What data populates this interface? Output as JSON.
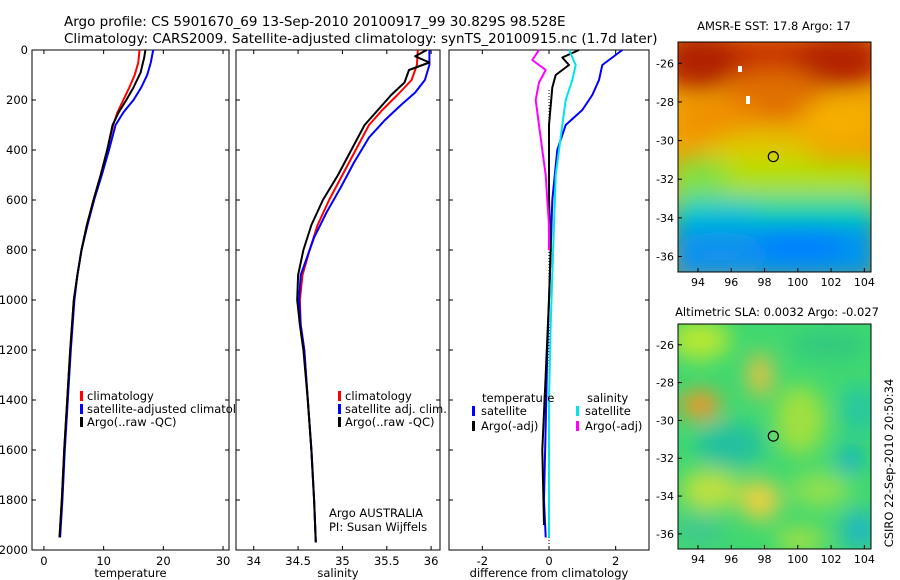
{
  "header": {
    "line1": "Argo profile: CS 5901670_69 13-Sep-2010 20100917_99 30.829S 98.528E",
    "line2": "Climatology: CARS2009. Satellite-adjusted climatology: synTS_20100915.nc (1.7d later)"
  },
  "side_label": "CSIRO 22-Sep-2010 20:50:34",
  "colors": {
    "climatology": "#ff0000",
    "satellite": "#0000ff",
    "argo": "#000000",
    "salinity_satellite": "#00e5e5",
    "salinity_argo": "#ff00ff"
  },
  "chart_data": [
    {
      "type": "line",
      "xlabel": "temperature",
      "ylim": [
        2000,
        0
      ],
      "xlim": [
        -2,
        31
      ],
      "xticks": [
        "0",
        "10",
        "20",
        "30"
      ],
      "yticks": [
        "0",
        "200",
        "400",
        "600",
        "800",
        "1000",
        "1200",
        "1400",
        "1600",
        "1800",
        "2000"
      ],
      "legend": [
        "climatology",
        "satellite-adjusted climatolo",
        "Argo(..raw -QC)"
      ],
      "series": [
        {
          "name": "climatology",
          "color": "#ff0000",
          "points": [
            [
              16.0,
              0
            ],
            [
              15.8,
              50
            ],
            [
              15.2,
              100
            ],
            [
              14.3,
              150
            ],
            [
              13.3,
              200
            ],
            [
              12.3,
              250
            ],
            [
              11.6,
              300
            ],
            [
              10.6,
              400
            ],
            [
              9.5,
              500
            ],
            [
              8.3,
              600
            ],
            [
              7.2,
              700
            ],
            [
              6.3,
              800
            ],
            [
              5.6,
              900
            ],
            [
              5.0,
              1000
            ],
            [
              4.4,
              1200
            ],
            [
              3.9,
              1400
            ],
            [
              3.4,
              1600
            ],
            [
              3.0,
              1800
            ],
            [
              2.6,
              1950
            ]
          ]
        },
        {
          "name": "satellite-adjusted climatolo",
          "color": "#0000ff",
          "points": [
            [
              18.3,
              0
            ],
            [
              17.9,
              50
            ],
            [
              17.3,
              100
            ],
            [
              16.3,
              150
            ],
            [
              15.0,
              200
            ],
            [
              13.3,
              250
            ],
            [
              12.0,
              300
            ],
            [
              10.9,
              400
            ],
            [
              9.7,
              500
            ],
            [
              8.4,
              600
            ],
            [
              7.3,
              700
            ],
            [
              6.3,
              800
            ],
            [
              5.6,
              900
            ],
            [
              5.1,
              1000
            ],
            [
              4.5,
              1200
            ],
            [
              4.0,
              1400
            ],
            [
              3.5,
              1600
            ],
            [
              3.1,
              1800
            ],
            [
              2.7,
              1950
            ]
          ]
        },
        {
          "name": "Argo(..raw -QC)",
          "color": "#000000",
          "points": [
            [
              17.0,
              0
            ],
            [
              16.8,
              30
            ],
            [
              16.2,
              90
            ],
            [
              15.0,
              150
            ],
            [
              13.8,
              200
            ],
            [
              12.5,
              250
            ],
            [
              11.5,
              300
            ],
            [
              10.6,
              400
            ],
            [
              9.5,
              500
            ],
            [
              8.3,
              600
            ],
            [
              7.2,
              700
            ],
            [
              6.3,
              800
            ],
            [
              5.6,
              900
            ],
            [
              5.0,
              1000
            ],
            [
              4.4,
              1200
            ],
            [
              3.9,
              1400
            ],
            [
              3.4,
              1600
            ],
            [
              3.0,
              1800
            ],
            [
              2.6,
              1950
            ]
          ]
        }
      ]
    },
    {
      "type": "line",
      "xlabel": "salinity",
      "ylim": [
        2000,
        0
      ],
      "xlim": [
        33.8,
        36.1
      ],
      "xticks": [
        "34",
        "34.5",
        "35",
        "35.5",
        "36"
      ],
      "legend": [
        "climatology",
        "satellite adj. clim.",
        "Argo(..raw -QC)"
      ],
      "annotation": [
        "Argo AUSTRALIA",
        "PI: Susan Wijffels"
      ],
      "series": [
        {
          "name": "climatology",
          "color": "#ff0000",
          "points": [
            [
              35.85,
              0
            ],
            [
              35.84,
              60
            ],
            [
              35.78,
              120
            ],
            [
              35.62,
              180
            ],
            [
              35.45,
              240
            ],
            [
              35.3,
              300
            ],
            [
              35.15,
              400
            ],
            [
              35.0,
              500
            ],
            [
              34.85,
              600
            ],
            [
              34.72,
              700
            ],
            [
              34.63,
              800
            ],
            [
              34.55,
              900
            ],
            [
              34.52,
              1000
            ],
            [
              34.53,
              1100
            ],
            [
              34.57,
              1200
            ],
            [
              34.61,
              1400
            ],
            [
              34.65,
              1600
            ],
            [
              34.68,
              1800
            ],
            [
              34.7,
              1970
            ]
          ]
        },
        {
          "name": "satellite adj. clim.",
          "color": "#0000ff",
          "points": [
            [
              35.98,
              0
            ],
            [
              35.98,
              60
            ],
            [
              35.93,
              120
            ],
            [
              35.82,
              170
            ],
            [
              35.66,
              220
            ],
            [
              35.48,
              280
            ],
            [
              35.3,
              350
            ],
            [
              35.13,
              450
            ],
            [
              34.98,
              550
            ],
            [
              34.82,
              650
            ],
            [
              34.68,
              750
            ],
            [
              34.6,
              830
            ],
            [
              34.53,
              900
            ],
            [
              34.51,
              1000
            ],
            [
              34.53,
              1100
            ],
            [
              34.57,
              1200
            ],
            [
              34.61,
              1400
            ],
            [
              34.65,
              1600
            ],
            [
              34.68,
              1800
            ],
            [
              34.7,
              1970
            ]
          ]
        },
        {
          "name": "Argo(..raw -QC)",
          "color": "#000000",
          "points": [
            [
              35.95,
              0
            ],
            [
              35.82,
              25
            ],
            [
              35.98,
              50
            ],
            [
              35.75,
              80
            ],
            [
              35.7,
              130
            ],
            [
              35.55,
              180
            ],
            [
              35.4,
              240
            ],
            [
              35.25,
              300
            ],
            [
              35.1,
              400
            ],
            [
              34.95,
              500
            ],
            [
              34.78,
              600
            ],
            [
              34.65,
              700
            ],
            [
              34.56,
              800
            ],
            [
              34.5,
              900
            ],
            [
              34.49,
              1000
            ],
            [
              34.52,
              1100
            ],
            [
              34.56,
              1200
            ],
            [
              34.61,
              1400
            ],
            [
              34.65,
              1600
            ],
            [
              34.68,
              1800
            ],
            [
              34.7,
              1970
            ]
          ]
        }
      ]
    },
    {
      "type": "line",
      "xlabel": "difference from climatology",
      "ylim": [
        2000,
        0
      ],
      "xlim": [
        -3,
        3
      ],
      "xticks": [
        "-2",
        "0",
        "2"
      ],
      "legend_groups": [
        {
          "title": "temperature",
          "items": [
            "satellite",
            "Argo(-adj)"
          ]
        },
        {
          "title": "salinity",
          "items": [
            "satellite",
            "Argo(-adj)"
          ]
        }
      ],
      "series": [
        {
          "name": "temperature satellite",
          "color": "#0000ff",
          "points": [
            [
              2.2,
              0
            ],
            [
              1.6,
              60
            ],
            [
              1.5,
              120
            ],
            [
              1.3,
              180
            ],
            [
              1.0,
              240
            ],
            [
              0.5,
              300
            ],
            [
              0.25,
              400
            ],
            [
              0.1,
              600
            ],
            [
              0.05,
              800
            ],
            [
              0.0,
              1000
            ],
            [
              -0.05,
              1200
            ],
            [
              -0.1,
              1500
            ],
            [
              -0.15,
              1800
            ],
            [
              -0.1,
              1950
            ]
          ]
        },
        {
          "name": "temperature Argo(-adj)",
          "color": "#000000",
          "points": [
            [
              0.9,
              0
            ],
            [
              0.4,
              30
            ],
            [
              0.6,
              60
            ],
            [
              0.2,
              100
            ],
            [
              0.1,
              150
            ],
            [
              0.0,
              300
            ],
            [
              0.0,
              600
            ],
            [
              0.05,
              800
            ],
            [
              0.0,
              1000
            ],
            [
              -0.1,
              1300
            ],
            [
              -0.2,
              1600
            ],
            [
              -0.15,
              1900
            ]
          ]
        },
        {
          "name": "salinity satellite",
          "color": "#00e5e5",
          "points": [
            [
              0.6,
              0
            ],
            [
              0.8,
              60
            ],
            [
              0.7,
              120
            ],
            [
              0.5,
              200
            ],
            [
              0.4,
              300
            ],
            [
              0.3,
              400
            ],
            [
              0.2,
              500
            ],
            [
              0.15,
              700
            ],
            [
              0.1,
              900
            ],
            [
              0.05,
              1100
            ],
            [
              0.0,
              1400
            ],
            [
              0.0,
              1700
            ],
            [
              0.0,
              1950
            ]
          ]
        },
        {
          "name": "salinity Argo(-adj)",
          "color": "#ff00ff",
          "points": [
            [
              -0.3,
              0
            ],
            [
              -0.5,
              40
            ],
            [
              -0.1,
              80
            ],
            [
              -0.3,
              130
            ],
            [
              -0.4,
              200
            ],
            [
              -0.3,
              300
            ],
            [
              -0.2,
              400
            ],
            [
              -0.1,
              500
            ],
            [
              -0.05,
              600
            ],
            [
              0.0,
              700
            ],
            [
              0.0,
              800
            ]
          ]
        }
      ]
    },
    {
      "type": "heatmap",
      "title": "AMSR-E SST: 17.8 Argo: 17",
      "xlim": [
        92.8,
        104.4
      ],
      "ylim": [
        -36.8,
        -24.9
      ],
      "xticks": [
        "94",
        "96",
        "98",
        "100",
        "102",
        "104"
      ],
      "yticks": [
        "-26",
        "-28",
        "-30",
        "-32",
        "-34",
        "-36"
      ],
      "marker": {
        "lon": 98.53,
        "lat": -30.83
      }
    },
    {
      "type": "heatmap",
      "title": "Altimetric SLA: 0.0032 Argo: -0.027",
      "xlim": [
        92.8,
        104.4
      ],
      "ylim": [
        -36.8,
        -24.9
      ],
      "xticks": [
        "94",
        "96",
        "98",
        "100",
        "102",
        "104"
      ],
      "yticks": [
        "-26",
        "-28",
        "-30",
        "-32",
        "-34",
        "-36"
      ],
      "marker": {
        "lon": 98.53,
        "lat": -30.83
      }
    }
  ]
}
